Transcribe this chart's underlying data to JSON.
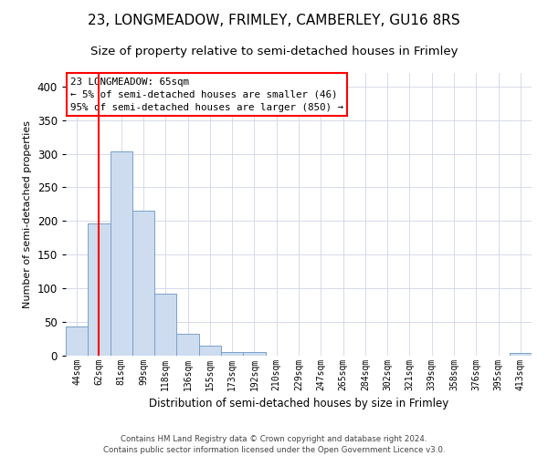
{
  "title": "23, LONGMEADOW, FRIMLEY, CAMBERLEY, GU16 8RS",
  "subtitle": "Size of property relative to semi-detached houses in Frimley",
  "xlabel": "Distribution of semi-detached houses by size in Frimley",
  "ylabel": "Number of semi-detached properties",
  "footer_line1": "Contains HM Land Registry data © Crown copyright and database right 2024.",
  "footer_line2": "Contains public sector information licensed under the Open Government Licence v3.0.",
  "bar_labels": [
    "44sqm",
    "62sqm",
    "81sqm",
    "99sqm",
    "118sqm",
    "136sqm",
    "155sqm",
    "173sqm",
    "192sqm",
    "210sqm",
    "229sqm",
    "247sqm",
    "265sqm",
    "284sqm",
    "302sqm",
    "321sqm",
    "339sqm",
    "358sqm",
    "376sqm",
    "395sqm",
    "413sqm"
  ],
  "bar_values": [
    44,
    197,
    304,
    215,
    92,
    33,
    15,
    5,
    5,
    0,
    0,
    0,
    0,
    0,
    0,
    0,
    0,
    0,
    0,
    0,
    4
  ],
  "bar_color": "#cddcef",
  "bar_edge_color": "#7aa0c8",
  "ylim": [
    0,
    420
  ],
  "yticks": [
    0,
    50,
    100,
    150,
    200,
    250,
    300,
    350,
    400
  ],
  "annotation_text": "23 LONGMEADOW: 65sqm\n← 5% of semi-detached houses are smaller (46)\n95% of semi-detached houses are larger (850) →",
  "annotation_box_color": "white",
  "annotation_box_edge_color": "red",
  "red_line_x": 1,
  "grid_color": "#d0d4e8",
  "title_fontsize": 11,
  "subtitle_fontsize": 9.5
}
